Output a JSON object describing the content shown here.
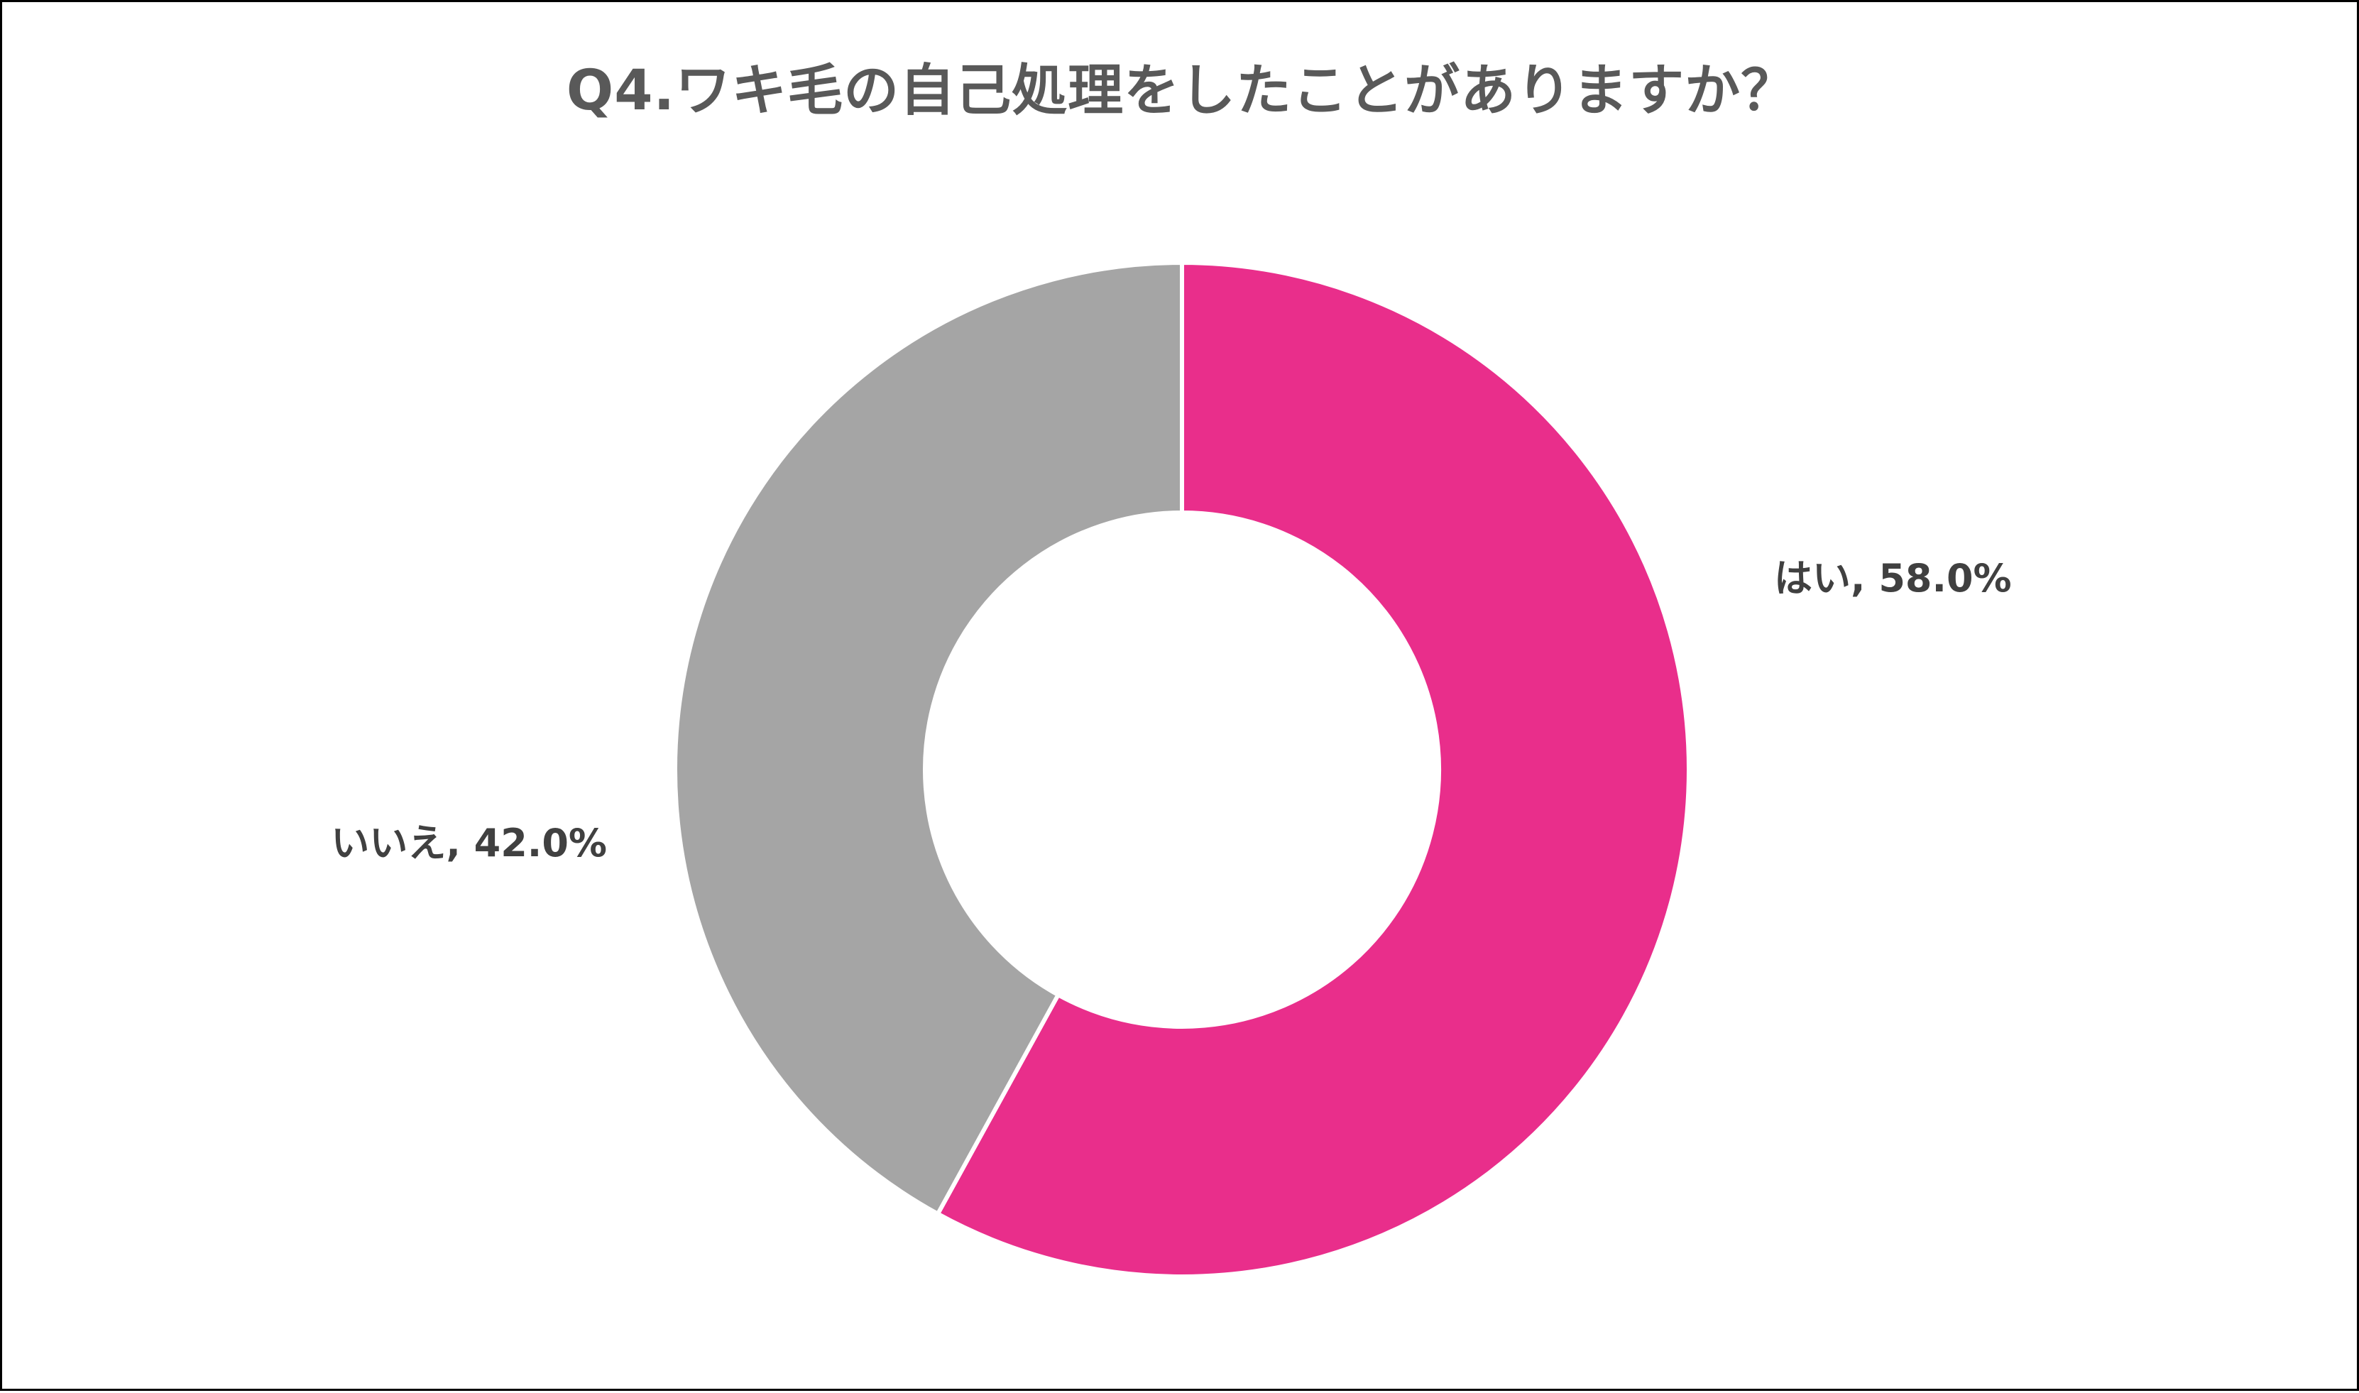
{
  "chart_data": {
    "type": "pie",
    "variant": "donut",
    "title": "Q4.ワキ毛の自己処理をしたことがありますか？",
    "categories": [
      "はい",
      "いいえ"
    ],
    "values": [
      58.0,
      42.0
    ],
    "unit": "%",
    "colors": [
      "#E92E8B",
      "#A5A5A5"
    ],
    "labels": [
      "はい, 58.0%",
      "いいえ, 42.0%"
    ],
    "legend": "none",
    "start_angle": "12 o'clock",
    "direction": "clockwise"
  }
}
